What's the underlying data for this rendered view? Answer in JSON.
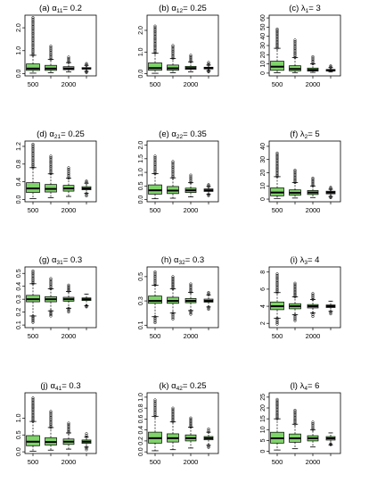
{
  "colors": {
    "box_fill": "#7fd36a",
    "ink": "#000000",
    "background": "#ffffff"
  },
  "chart_data": [
    {
      "type": "box",
      "title": "(a) α11= 0.2",
      "title_prefix": "(a) ",
      "symbol": "α",
      "sub": "11",
      "title_suffix": "= 0.2",
      "x_ticks": [
        "500",
        "2000"
      ],
      "yticks": [
        0,
        1,
        2
      ],
      "y_tick_labels": [
        "0.0",
        "1.0",
        "2.0"
      ],
      "ylim": [
        -0.1,
        2.55
      ],
      "boxes": [
        {
          "whislo": 0.02,
          "q1": 0.14,
          "med": 0.22,
          "q3": 0.42,
          "whishi": 0.8,
          "outhi": 2.45,
          "outlo": null
        },
        {
          "whislo": 0.04,
          "q1": 0.14,
          "med": 0.22,
          "q3": 0.36,
          "whishi": 0.62,
          "outhi": 1.2,
          "outlo": null
        },
        {
          "whislo": 0.07,
          "q1": 0.17,
          "med": 0.22,
          "q3": 0.3,
          "whishi": 0.48,
          "outhi": 0.72,
          "outlo": null
        },
        {
          "whislo": 0.1,
          "q1": 0.2,
          "med": 0.22,
          "q3": 0.26,
          "whishi": 0.36,
          "outhi": 0.44,
          "outlo": 0.04
        }
      ]
    },
    {
      "type": "box",
      "title": "(b) α12= 0.25",
      "title_prefix": "(b) ",
      "symbol": "α",
      "sub": "12",
      "title_suffix": "= 0.25",
      "x_ticks": [
        "500",
        "2000"
      ],
      "yticks": [
        0,
        1,
        2
      ],
      "y_tick_labels": [
        "0.0",
        "1.0",
        "2.0"
      ],
      "ylim": [
        -0.1,
        2.7
      ],
      "boxes": [
        {
          "whislo": 0.02,
          "q1": 0.16,
          "med": 0.26,
          "q3": 0.5,
          "whishi": 0.95,
          "outhi": 2.2,
          "outlo": null
        },
        {
          "whislo": 0.04,
          "q1": 0.16,
          "med": 0.25,
          "q3": 0.4,
          "whishi": 0.7,
          "outhi": 1.3,
          "outlo": null
        },
        {
          "whislo": 0.08,
          "q1": 0.2,
          "med": 0.26,
          "q3": 0.34,
          "whishi": 0.55,
          "outhi": 0.85,
          "outlo": null
        },
        {
          "whislo": 0.14,
          "q1": 0.22,
          "med": 0.25,
          "q3": 0.3,
          "whishi": 0.4,
          "outhi": 0.52,
          "outlo": 0.08
        }
      ]
    },
    {
      "type": "box",
      "title": "(c) λ1= 3",
      "title_prefix": "(c) ",
      "symbol": "λ",
      "sub": "1",
      "title_suffix": "= 3",
      "x_ticks": [
        "500",
        "2000"
      ],
      "yticks": [
        0,
        10,
        20,
        30,
        40,
        50,
        60
      ],
      "y_tick_labels": [
        "0",
        "10",
        "20",
        "30",
        "40",
        "50",
        "60"
      ],
      "ylim": [
        -3,
        63
      ],
      "boxes": [
        {
          "whislo": 0.3,
          "q1": 3,
          "med": 7,
          "q3": 13,
          "whishi": 27,
          "outhi": 48,
          "outlo": null
        },
        {
          "whislo": 0.5,
          "q1": 2.5,
          "med": 4.5,
          "q3": 8,
          "whishi": 17,
          "outhi": 36,
          "outlo": null
        },
        {
          "whislo": 0.8,
          "q1": 2.2,
          "med": 3.5,
          "q3": 5.5,
          "whishi": 10,
          "outhi": 18,
          "outlo": null
        },
        {
          "whislo": 1.2,
          "q1": 2.3,
          "med": 3,
          "q3": 4,
          "whishi": 6,
          "outhi": 8,
          "outlo": null
        }
      ]
    },
    {
      "type": "box",
      "title": "(d) α21= 0.25",
      "title_prefix": "(d) ",
      "symbol": "α",
      "sub": "21",
      "title_suffix": "= 0.25",
      "x_ticks": [
        "500",
        "2000"
      ],
      "yticks": [
        0,
        0.4,
        0.8,
        1.2
      ],
      "y_tick_labels": [
        "0.0",
        "0.4",
        "0.8",
        "1.2"
      ],
      "ylim": [
        -0.05,
        1.32
      ],
      "boxes": [
        {
          "whislo": 0.02,
          "q1": 0.16,
          "med": 0.25,
          "q3": 0.38,
          "whishi": 0.72,
          "outhi": 1.25,
          "outlo": null
        },
        {
          "whislo": 0.04,
          "q1": 0.17,
          "med": 0.24,
          "q3": 0.34,
          "whishi": 0.58,
          "outhi": 0.98,
          "outlo": null
        },
        {
          "whislo": 0.07,
          "q1": 0.19,
          "med": 0.25,
          "q3": 0.32,
          "whishi": 0.48,
          "outhi": 0.72,
          "outlo": null
        },
        {
          "whislo": 0.14,
          "q1": 0.22,
          "med": 0.25,
          "q3": 0.29,
          "whishi": 0.37,
          "outhi": 0.42,
          "outlo": 0.08
        }
      ]
    },
    {
      "type": "box",
      "title": "(e) α22= 0.35",
      "title_prefix": "(e) ",
      "symbol": "α",
      "sub": "22",
      "title_suffix": "= 0.35",
      "x_ticks": [
        "500",
        "2000"
      ],
      "yticks": [
        0,
        0.5,
        1,
        1.5,
        2
      ],
      "y_tick_labels": [
        "0.0",
        "0.5",
        "1.0",
        "1.5",
        "2.0"
      ],
      "ylim": [
        -0.08,
        2.15
      ],
      "boxes": [
        {
          "whislo": 0.03,
          "q1": 0.2,
          "med": 0.34,
          "q3": 0.54,
          "whishi": 0.95,
          "outhi": 1.6,
          "outlo": null
        },
        {
          "whislo": 0.05,
          "q1": 0.22,
          "med": 0.33,
          "q3": 0.48,
          "whishi": 0.8,
          "outhi": 1.4,
          "outlo": null
        },
        {
          "whislo": 0.1,
          "q1": 0.26,
          "med": 0.34,
          "q3": 0.42,
          "whishi": 0.62,
          "outhi": 0.9,
          "outlo": null
        },
        {
          "whislo": 0.2,
          "q1": 0.3,
          "med": 0.34,
          "q3": 0.39,
          "whishi": 0.48,
          "outhi": 0.55,
          "outlo": 0.14
        }
      ]
    },
    {
      "type": "box",
      "title": "(f) λ2= 5",
      "title_prefix": "(f) ",
      "symbol": "λ",
      "sub": "2",
      "title_suffix": "= 5",
      "x_ticks": [
        "500",
        "2000"
      ],
      "yticks": [
        0,
        10,
        20,
        30,
        40
      ],
      "y_tick_labels": [
        "0",
        "10",
        "20",
        "30",
        "40"
      ],
      "ylim": [
        -2,
        44
      ],
      "boxes": [
        {
          "whislo": 0.5,
          "q1": 2.5,
          "med": 5,
          "q3": 8.5,
          "whishi": 17,
          "outhi": 35,
          "outlo": null
        },
        {
          "whislo": 0.8,
          "q1": 3,
          "med": 4.8,
          "q3": 7,
          "whishi": 12.5,
          "outhi": 22,
          "outlo": null
        },
        {
          "whislo": 1.2,
          "q1": 3.5,
          "med": 5,
          "q3": 6.5,
          "whishi": 10,
          "outhi": 16,
          "outlo": null
        },
        {
          "whislo": 2,
          "q1": 4,
          "med": 5,
          "q3": 6,
          "whishi": 7.5,
          "outhi": 9,
          "outlo": 1
        }
      ]
    },
    {
      "type": "box",
      "title": "(g) α31= 0.3",
      "title_prefix": "(g) ",
      "symbol": "α",
      "sub": "31",
      "title_suffix": "= 0.3",
      "x_ticks": [
        "500",
        "2000"
      ],
      "yticks": [
        0.1,
        0.2,
        0.3,
        0.4,
        0.5
      ],
      "y_tick_labels": [
        "0.1",
        "0.2",
        "0.3",
        "0.4",
        "0.5"
      ],
      "ylim": [
        0.08,
        0.55
      ],
      "boxes": [
        {
          "whislo": 0.17,
          "q1": 0.28,
          "med": 0.3,
          "q3": 0.33,
          "whishi": 0.42,
          "outhi": 0.52,
          "outlo": 0.12
        },
        {
          "whislo": 0.21,
          "q1": 0.28,
          "med": 0.3,
          "q3": 0.32,
          "whishi": 0.38,
          "outhi": 0.46,
          "outlo": 0.17
        },
        {
          "whislo": 0.23,
          "q1": 0.285,
          "med": 0.3,
          "q3": 0.315,
          "whishi": 0.36,
          "outhi": 0.41,
          "outlo": 0.2
        },
        {
          "whislo": 0.25,
          "q1": 0.29,
          "med": 0.3,
          "q3": 0.31,
          "whishi": 0.34,
          "outhi": null,
          "outlo": 0.24
        }
      ]
    },
    {
      "type": "box",
      "title": "(h) α32= 0.3",
      "title_prefix": "(h) ",
      "symbol": "α",
      "sub": "32",
      "title_suffix": "= 0.3",
      "x_ticks": [
        "500",
        "2000"
      ],
      "yticks": [
        0.1,
        0.3,
        0.5
      ],
      "y_tick_labels": [
        "0.1",
        "0.3",
        "0.5"
      ],
      "ylim": [
        0.08,
        0.58
      ],
      "boxes": [
        {
          "whislo": 0.17,
          "q1": 0.28,
          "med": 0.3,
          "q3": 0.34,
          "whishi": 0.43,
          "outhi": 0.54,
          "outlo": 0.12
        },
        {
          "whislo": 0.2,
          "q1": 0.28,
          "med": 0.3,
          "q3": 0.33,
          "whishi": 0.4,
          "outhi": 0.5,
          "outlo": 0.15
        },
        {
          "whislo": 0.22,
          "q1": 0.285,
          "med": 0.3,
          "q3": 0.32,
          "whishi": 0.37,
          "outhi": 0.44,
          "outlo": 0.19
        },
        {
          "whislo": 0.25,
          "q1": 0.29,
          "med": 0.3,
          "q3": 0.315,
          "whishi": 0.35,
          "outhi": 0.37,
          "outlo": 0.23
        }
      ]
    },
    {
      "type": "box",
      "title": "(i) λ3= 4",
      "title_prefix": "(i) ",
      "symbol": "λ",
      "sub": "3",
      "title_suffix": "= 4",
      "x_ticks": [
        "500",
        "2000"
      ],
      "yticks": [
        2,
        4,
        6,
        8
      ],
      "y_tick_labels": [
        "2",
        "4",
        "6",
        "8"
      ],
      "ylim": [
        1.5,
        8.6
      ],
      "boxes": [
        {
          "whislo": 2.6,
          "q1": 3.6,
          "med": 4,
          "q3": 4.5,
          "whishi": 5.6,
          "outhi": 7.8,
          "outlo": 1.9
        },
        {
          "whislo": 3.0,
          "q1": 3.7,
          "med": 4,
          "q3": 4.3,
          "whishi": 5.1,
          "outhi": 6.7,
          "outlo": 2.3
        },
        {
          "whislo": 3.2,
          "q1": 3.8,
          "med": 4,
          "q3": 4.2,
          "whishi": 4.8,
          "outhi": 5.5,
          "outlo": 2.8
        },
        {
          "whislo": 3.4,
          "q1": 3.85,
          "med": 4,
          "q3": 4.15,
          "whishi": 4.6,
          "outhi": null,
          "outlo": 3.1
        }
      ]
    },
    {
      "type": "box",
      "title": "(j) α41= 0.3",
      "title_prefix": "(j) ",
      "symbol": "α",
      "sub": "41",
      "title_suffix": "= 0.3",
      "x_ticks": [
        "500",
        "2000"
      ],
      "yticks": [
        0,
        0.5,
        1
      ],
      "y_tick_labels": [
        "0.0",
        "0.5",
        "1.0"
      ],
      "ylim": [
        -0.05,
        1.75
      ],
      "boxes": [
        {
          "whislo": 0.02,
          "q1": 0.18,
          "med": 0.3,
          "q3": 0.48,
          "whishi": 0.9,
          "outhi": 1.6,
          "outlo": null
        },
        {
          "whislo": 0.05,
          "q1": 0.2,
          "med": 0.29,
          "q3": 0.42,
          "whishi": 0.72,
          "outhi": 1.2,
          "outlo": null
        },
        {
          "whislo": 0.08,
          "q1": 0.22,
          "med": 0.3,
          "q3": 0.38,
          "whishi": 0.56,
          "outhi": 0.85,
          "outlo": null
        },
        {
          "whislo": 0.14,
          "q1": 0.25,
          "med": 0.3,
          "q3": 0.35,
          "whishi": 0.44,
          "outhi": 0.54,
          "outlo": 0.06
        }
      ]
    },
    {
      "type": "box",
      "title": "(k) α42= 0.25",
      "title_prefix": "(k) ",
      "symbol": "α",
      "sub": "42",
      "title_suffix": "= 0.25",
      "x_ticks": [
        "500",
        "2000"
      ],
      "yticks": [
        0,
        0.2,
        0.4,
        0.6,
        0.8,
        1
      ],
      "y_tick_labels": [
        "0.0",
        "0.2",
        "0.4",
        "0.6",
        "0.8",
        "1.0"
      ],
      "ylim": [
        -0.03,
        1.08
      ],
      "boxes": [
        {
          "whislo": 0.02,
          "q1": 0.16,
          "med": 0.25,
          "q3": 0.36,
          "whishi": 0.65,
          "outhi": 0.95,
          "outlo": null
        },
        {
          "whislo": 0.04,
          "q1": 0.18,
          "med": 0.25,
          "q3": 0.33,
          "whishi": 0.55,
          "outhi": 0.8,
          "outlo": null
        },
        {
          "whislo": 0.07,
          "q1": 0.2,
          "med": 0.25,
          "q3": 0.31,
          "whishi": 0.45,
          "outhi": 0.62,
          "outlo": null
        },
        {
          "whislo": 0.12,
          "q1": 0.22,
          "med": 0.25,
          "q3": 0.28,
          "whishi": 0.36,
          "outhi": 0.42,
          "outlo": 0.08
        }
      ]
    },
    {
      "type": "box",
      "title": "(l) λ4= 6",
      "title_prefix": "(l) ",
      "symbol": "λ",
      "sub": "4",
      "title_suffix": "= 6",
      "x_ticks": [
        "500",
        "2000"
      ],
      "yticks": [
        0,
        5,
        10,
        15,
        20,
        25
      ],
      "y_tick_labels": [
        "0",
        "5",
        "10",
        "15",
        "20",
        "25"
      ],
      "ylim": [
        -1,
        27
      ],
      "boxes": [
        {
          "whislo": 0.6,
          "q1": 3.8,
          "med": 6,
          "q3": 8.8,
          "whishi": 15,
          "outhi": 24,
          "outlo": null
        },
        {
          "whislo": 1.2,
          "q1": 4.2,
          "med": 6,
          "q3": 8,
          "whishi": 12.5,
          "outhi": 19,
          "outlo": null
        },
        {
          "whislo": 2,
          "q1": 4.8,
          "med": 6,
          "q3": 7.2,
          "whishi": 10,
          "outhi": 13.5,
          "outlo": null
        },
        {
          "whislo": 3,
          "q1": 5.2,
          "med": 6,
          "q3": 6.8,
          "whishi": 8.5,
          "outhi": null,
          "outlo": 3.5
        }
      ]
    }
  ]
}
